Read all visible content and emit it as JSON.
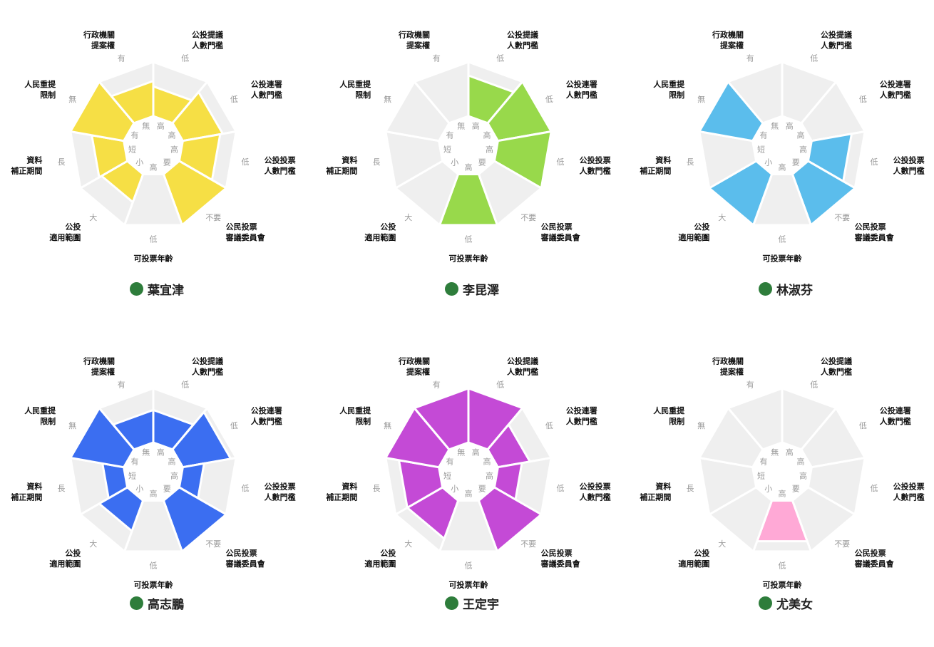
{
  "chart_data": {
    "type": "radar-sector",
    "axes": [
      {
        "label": [
          "公投提議",
          "人數門檻"
        ],
        "inner": "高",
        "outer": "低"
      },
      {
        "label": [
          "公投連署",
          "人數門檻"
        ],
        "inner": "高",
        "outer": "低"
      },
      {
        "label": [
          "公投投票",
          "人數門檻"
        ],
        "inner": "高",
        "outer": "低"
      },
      {
        "label": [
          "公民投票",
          "審議委員會"
        ],
        "inner": "要",
        "outer": "不要"
      },
      {
        "label": [
          "可投票年齡"
        ],
        "inner": "高",
        "outer": "低"
      },
      {
        "label": [
          "公投",
          "適用範圍"
        ],
        "inner": "小",
        "outer": "大"
      },
      {
        "label": [
          "資料",
          "補正期間"
        ],
        "inner": "短",
        "outer": "長"
      },
      {
        "label": [
          "人民重提",
          "限制"
        ],
        "inner": "有",
        "outer": "無"
      },
      {
        "label": [
          "行政機關",
          "提案權"
        ],
        "inner": "無",
        "outer": "有"
      }
    ],
    "scale": [
      0,
      1
    ],
    "series": [
      {
        "name": "葉宜津",
        "color": "#f6df45",
        "values": [
          0.55,
          0.75,
          0.7,
          1.0,
          0,
          0.55,
          0.6,
          1.0,
          0.65
        ]
      },
      {
        "name": "李昆澤",
        "color": "#98d94b",
        "values": [
          0.75,
          1.0,
          1.0,
          0,
          1.0,
          0,
          0,
          0,
          0
        ]
      },
      {
        "name": "林淑芬",
        "color": "#5bbdec",
        "values": [
          0,
          0,
          0.75,
          1.0,
          0,
          1.0,
          0,
          1.0,
          0
        ]
      },
      {
        "name": "高志鵬",
        "color": "#3b6ef1",
        "values": [
          0.6,
          0.9,
          0.4,
          1.0,
          0,
          0.6,
          0.4,
          1.0,
          0.6
        ]
      },
      {
        "name": "王定宇",
        "color": "#c44ad6",
        "values": [
          1.0,
          0.6,
          0.45,
          1.0,
          0,
          0.75,
          0.75,
          1.0,
          1.0
        ]
      },
      {
        "name": "尤美女",
        "color": "#ffa9d6",
        "values": [
          0,
          0,
          0,
          0,
          0.8,
          0,
          0,
          0,
          0
        ]
      }
    ]
  }
}
